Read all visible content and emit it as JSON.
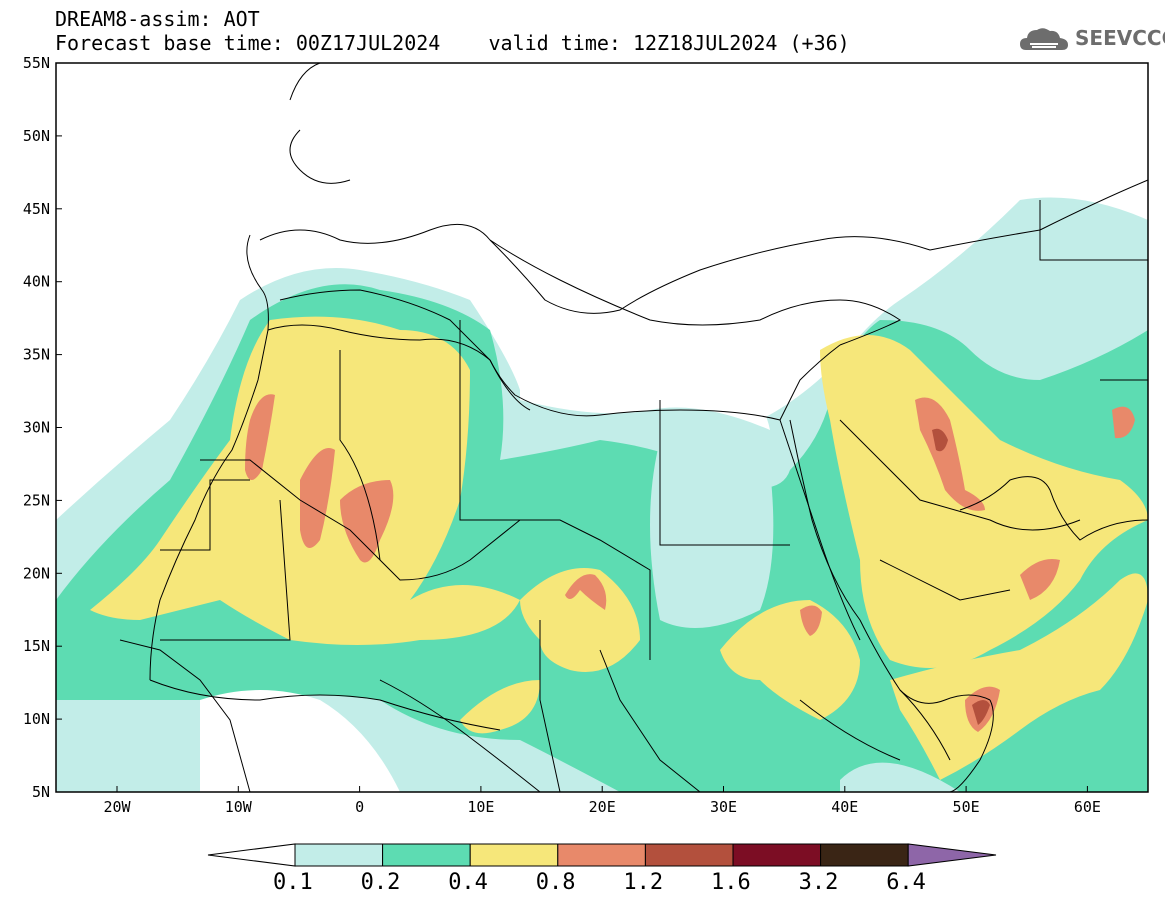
{
  "header": {
    "title": "DREAM8-assim: AOT",
    "base_time_label": "Forecast base time: 00Z17JUL2024",
    "valid_time_label": "valid time: 12Z18JUL2024 (+36)"
  },
  "logo": {
    "text": "SEEVCCC",
    "icon": "cloud-logo-icon"
  },
  "axes": {
    "lat_labels": [
      "55N",
      "50N",
      "45N",
      "40N",
      "35N",
      "30N",
      "25N",
      "20N",
      "15N",
      "10N",
      "5N"
    ],
    "lon_labels": [
      "20W",
      "10W",
      "0",
      "10E",
      "20E",
      "30E",
      "40E",
      "50E",
      "60E"
    ]
  },
  "colorbar": {
    "colors": [
      "#ffffff",
      "#c2ede8",
      "#5ddcb2",
      "#f6e77a",
      "#e8896a",
      "#b3503d",
      "#7c0d24",
      "#3a2515",
      "#8e66a8"
    ],
    "labels": [
      "0.1",
      "0.2",
      "0.4",
      "0.8",
      "1.2",
      "1.6",
      "3.2",
      "6.4"
    ]
  }
}
